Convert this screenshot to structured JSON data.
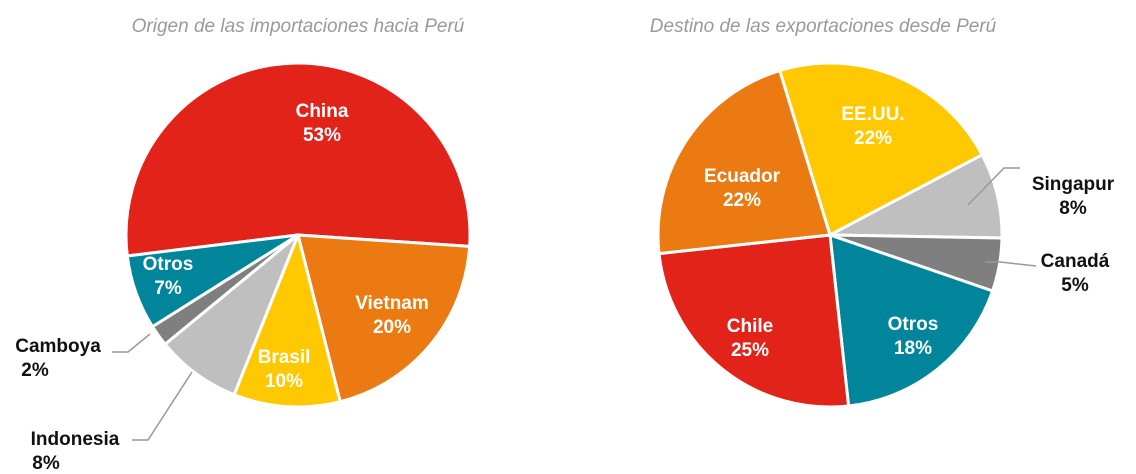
{
  "chart_data": [
    {
      "type": "pie",
      "title": "Origen de las importaciones hacia Perú",
      "categories": [
        "China",
        "Vietnam",
        "Brasil",
        "Indonesia",
        "Camboya",
        "Otros"
      ],
      "values": [
        53,
        20,
        10,
        8,
        2,
        7
      ],
      "value_labels": [
        "53%",
        "20%",
        "10%",
        "8%",
        "2%",
        "7%"
      ],
      "colors": [
        "#e2231a",
        "#ec7a12",
        "#ffc800",
        "#bfbfbf",
        "#7f7f7f",
        "#00859b"
      ]
    },
    {
      "type": "pie",
      "title": "Destino de las exportaciones desde Perú",
      "categories": [
        "EE.UU.",
        "Singapur",
        "Canadá",
        "Otros",
        "Chile",
        "Ecuador"
      ],
      "values": [
        22,
        8,
        5,
        18,
        25,
        22
      ],
      "value_labels": [
        "22%",
        "8%",
        "5%",
        "18%",
        "25%",
        "22%"
      ],
      "colors": [
        "#ffc800",
        "#bfbfbf",
        "#7f7f7f",
        "#00859b",
        "#e2231a",
        "#ec7a12"
      ]
    }
  ]
}
